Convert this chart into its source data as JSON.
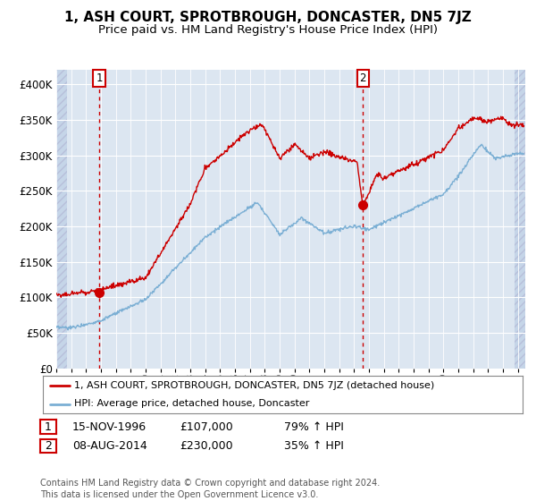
{
  "title": "1, ASH COURT, SPROTBROUGH, DONCASTER, DN5 7JZ",
  "subtitle": "Price paid vs. HM Land Registry's House Price Index (HPI)",
  "ylim": [
    0,
    420000
  ],
  "yticks": [
    0,
    50000,
    100000,
    150000,
    200000,
    250000,
    300000,
    350000,
    400000
  ],
  "ytick_labels": [
    "£0",
    "£50K",
    "£100K",
    "£150K",
    "£200K",
    "£250K",
    "£300K",
    "£350K",
    "£400K"
  ],
  "bg_color": "#dce6f1",
  "hatch_color": "#c5d5e8",
  "grid_color": "#ffffff",
  "line1_color": "#cc0000",
  "line2_color": "#7bafd4",
  "vline_color": "#cc0000",
  "sale1_x": 1996.88,
  "sale1_y": 107000,
  "sale2_x": 2014.6,
  "sale2_y": 230000,
  "xmin": 1994,
  "xmax": 2025.5,
  "legend_line1": "1, ASH COURT, SPROTBROUGH, DONCASTER, DN5 7JZ (detached house)",
  "legend_line2": "HPI: Average price, detached house, Doncaster",
  "table_row1": [
    "1",
    "15-NOV-1996",
    "£107,000",
    "79% ↑ HPI"
  ],
  "table_row2": [
    "2",
    "08-AUG-2014",
    "£230,000",
    "35% ↑ HPI"
  ],
  "footer": "Contains HM Land Registry data © Crown copyright and database right 2024.\nThis data is licensed under the Open Government Licence v3.0."
}
